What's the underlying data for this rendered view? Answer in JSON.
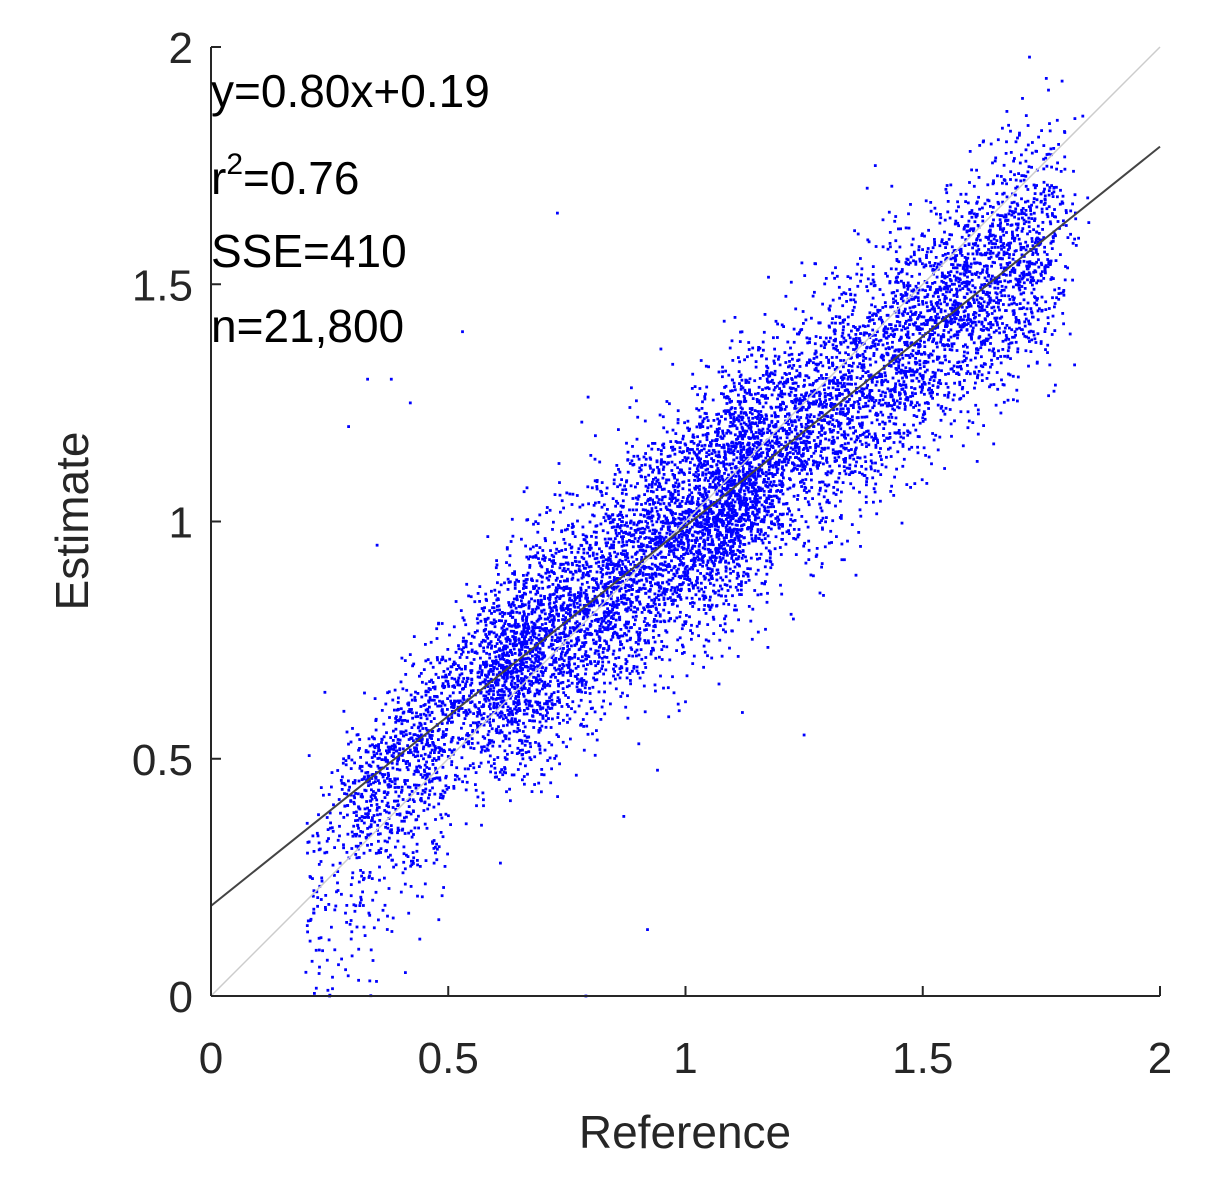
{
  "chart_data": {
    "type": "scatter",
    "xlabel": "Reference",
    "ylabel": "Estimate",
    "xlim": [
      0,
      2
    ],
    "ylim": [
      0,
      2
    ],
    "xticks": [
      "0",
      "0.5",
      "1",
      "1.5",
      "2"
    ],
    "yticks": [
      "0",
      "0.5",
      "1",
      "1.5",
      "2"
    ],
    "grid": false,
    "annotations": {
      "equation": "y=0.80x+0.19",
      "r2_prefix": "r",
      "r2_exponent": "2",
      "r2_value": "=0.76",
      "sse": "SSE=410",
      "n": "n=21,800"
    },
    "fit_line": {
      "slope": 0.8,
      "intercept": 0.19
    },
    "reference_line": {
      "slope": 1,
      "intercept": 0
    },
    "series": [
      {
        "marker_color": "#0000ff",
        "count": 21800,
        "points_representative": [
          [
            0.21,
            0.25
          ],
          [
            0.24,
            0.64
          ],
          [
            0.29,
            1.2
          ],
          [
            0.33,
            1.3
          ],
          [
            0.38,
            1.3
          ],
          [
            0.42,
            1.25
          ],
          [
            0.35,
            0.95
          ],
          [
            0.28,
            0.6
          ],
          [
            0.3,
            0.45
          ],
          [
            0.2,
            0.05
          ],
          [
            0.25,
            0.0
          ],
          [
            0.79,
            0.0
          ],
          [
            0.92,
            0.14
          ],
          [
            0.44,
            0.12
          ],
          [
            0.53,
            1.4
          ],
          [
            0.73,
            1.65
          ],
          [
            1.0,
            0.62
          ],
          [
            1.25,
            0.55
          ],
          [
            1.6,
            1.78
          ],
          [
            1.74,
            1.78
          ],
          [
            1.85,
            1.63
          ],
          [
            1.82,
            1.33
          ],
          [
            1.4,
            1.75
          ],
          [
            0.57,
            0.36
          ],
          [
            0.61,
            0.28
          ]
        ],
        "cloud": {
          "x_range": [
            0.2,
            1.85
          ],
          "fit_slope": 0.8,
          "fit_intercept": 0.19,
          "residual_sd": 0.11
        }
      }
    ]
  }
}
